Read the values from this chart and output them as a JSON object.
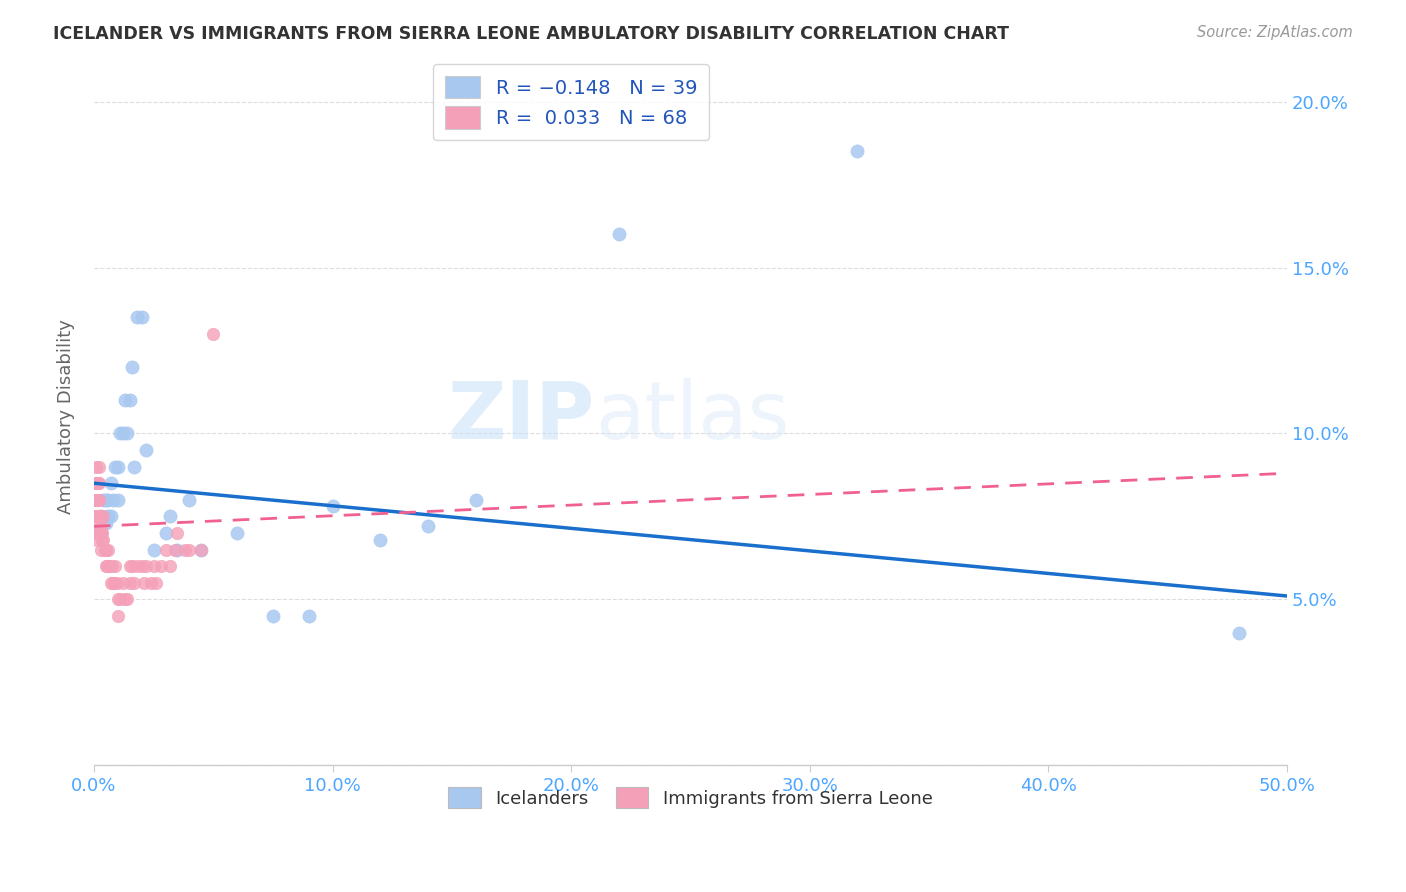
{
  "title": "ICELANDER VS IMMIGRANTS FROM SIERRA LEONE AMBULATORY DISABILITY CORRELATION CHART",
  "source": "Source: ZipAtlas.com",
  "ylabel": "Ambulatory Disability",
  "watermark_zip": "ZIP",
  "watermark_atlas": "atlas",
  "xlim": [
    0.0,
    0.5
  ],
  "ylim": [
    0.0,
    0.21
  ],
  "xtick_labels": [
    "0.0%",
    "10.0%",
    "20.0%",
    "30.0%",
    "40.0%",
    "50.0%"
  ],
  "xtick_vals": [
    0.0,
    0.1,
    0.2,
    0.3,
    0.4,
    0.5
  ],
  "ytick_vals": [
    0.0,
    0.05,
    0.1,
    0.15,
    0.2
  ],
  "ytick_labels_right": [
    "",
    "5.0%",
    "10.0%",
    "15.0%",
    "20.0%"
  ],
  "icelander_color": "#a8c8f0",
  "sierra_leone_color": "#f4a0b8",
  "icelander_trend_color": "#1a6fcc",
  "sierra_leone_trend_color": "#f06090",
  "background_color": "#ffffff",
  "grid_color": "#dddddd",
  "axis_label_color": "#4da6ff",
  "title_color": "#333333",
  "icelanders_x": [
    0.003,
    0.003,
    0.004,
    0.005,
    0.005,
    0.006,
    0.006,
    0.007,
    0.007,
    0.008,
    0.009,
    0.01,
    0.01,
    0.011,
    0.012,
    0.013,
    0.014,
    0.015,
    0.016,
    0.017,
    0.018,
    0.02,
    0.022,
    0.025,
    0.03,
    0.032,
    0.035,
    0.04,
    0.045,
    0.06,
    0.075,
    0.09,
    0.1,
    0.12,
    0.14,
    0.16,
    0.22,
    0.32,
    0.48
  ],
  "icelanders_y": [
    0.075,
    0.07,
    0.08,
    0.08,
    0.073,
    0.08,
    0.075,
    0.075,
    0.085,
    0.08,
    0.09,
    0.09,
    0.08,
    0.1,
    0.1,
    0.11,
    0.1,
    0.11,
    0.12,
    0.09,
    0.135,
    0.135,
    0.095,
    0.065,
    0.07,
    0.075,
    0.065,
    0.08,
    0.065,
    0.07,
    0.045,
    0.045,
    0.078,
    0.068,
    0.072,
    0.08,
    0.16,
    0.185,
    0.04
  ],
  "sierra_leone_x": [
    0.0005,
    0.0005,
    0.0007,
    0.0008,
    0.001,
    0.001,
    0.001,
    0.001,
    0.001,
    0.0012,
    0.0012,
    0.0013,
    0.0015,
    0.0015,
    0.0015,
    0.0018,
    0.002,
    0.002,
    0.002,
    0.002,
    0.002,
    0.0025,
    0.0028,
    0.003,
    0.003,
    0.0032,
    0.0035,
    0.004,
    0.004,
    0.0045,
    0.005,
    0.005,
    0.0055,
    0.006,
    0.006,
    0.0065,
    0.007,
    0.0075,
    0.008,
    0.0085,
    0.009,
    0.0095,
    0.01,
    0.01,
    0.011,
    0.012,
    0.013,
    0.014,
    0.015,
    0.015,
    0.016,
    0.017,
    0.018,
    0.02,
    0.021,
    0.022,
    0.024,
    0.025,
    0.026,
    0.028,
    0.03,
    0.032,
    0.034,
    0.035,
    0.038,
    0.04,
    0.045,
    0.05
  ],
  "sierra_leone_y": [
    0.08,
    0.075,
    0.085,
    0.08,
    0.09,
    0.085,
    0.08,
    0.075,
    0.07,
    0.072,
    0.068,
    0.075,
    0.085,
    0.08,
    0.075,
    0.08,
    0.09,
    0.085,
    0.08,
    0.075,
    0.07,
    0.075,
    0.07,
    0.072,
    0.065,
    0.068,
    0.07,
    0.075,
    0.068,
    0.065,
    0.065,
    0.06,
    0.06,
    0.065,
    0.06,
    0.06,
    0.055,
    0.06,
    0.055,
    0.055,
    0.06,
    0.055,
    0.05,
    0.045,
    0.05,
    0.055,
    0.05,
    0.05,
    0.06,
    0.055,
    0.06,
    0.055,
    0.06,
    0.06,
    0.055,
    0.06,
    0.055,
    0.06,
    0.055,
    0.06,
    0.065,
    0.06,
    0.065,
    0.07,
    0.065,
    0.065,
    0.065,
    0.13
  ],
  "trend_blue_x0": 0.0,
  "trend_blue_x1": 0.5,
  "trend_blue_y0": 0.085,
  "trend_blue_y1": 0.051,
  "trend_pink_x0": 0.0,
  "trend_pink_x1": 0.5,
  "trend_pink_y0": 0.072,
  "trend_pink_y1": 0.088
}
